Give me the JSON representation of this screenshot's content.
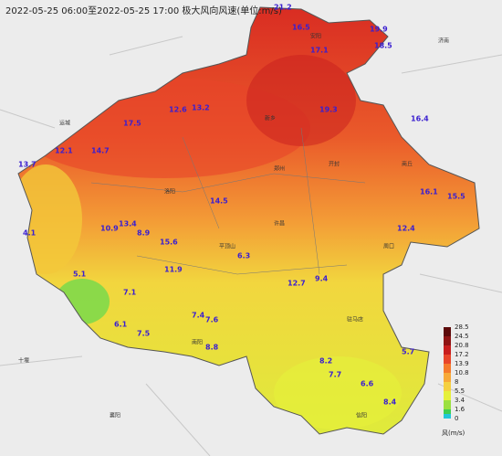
{
  "header": {
    "title": "2022-05-25 06:00至2022-05-25 17:00 极大风向风速(单位:m/s)"
  },
  "cities": [
    "郑州",
    "开封",
    "洛阳",
    "安阳",
    "新乡",
    "南阳",
    "信阳",
    "驻马店",
    "周口",
    "商丘",
    "许昌",
    "平顶山",
    "十堰",
    "襄阳",
    "运城",
    "济南"
  ],
  "stations": [
    "21.2",
    "19.9",
    "18.5",
    "16.5",
    "17.1",
    "19.3",
    "17.5",
    "12.6",
    "13.2",
    "12.1",
    "13.7",
    "14.7",
    "16.4",
    "16.1",
    "15.5",
    "14.5",
    "10.9",
    "13.4",
    "8.9",
    "15.6",
    "4.1",
    "5.1",
    "11.9",
    "7.1",
    "6.1",
    "7.5",
    "7.6",
    "8.8",
    "9.4",
    "12.7",
    "12.4",
    "6.3",
    "8.2",
    "5.7",
    "6.6",
    "7.4",
    "7.7",
    "8.4"
  ],
  "legend": {
    "unit": "风(m/s)",
    "levels": [
      {
        "label": "28.5",
        "color": "#5c0a0a"
      },
      {
        "label": "24.5",
        "color": "#8f1414"
      },
      {
        "label": "20.8",
        "color": "#c81e1e"
      },
      {
        "label": "17.2",
        "color": "#e8452a"
      },
      {
        "label": "13.9",
        "color": "#f57a2c"
      },
      {
        "label": "10.8",
        "color": "#f7a938"
      },
      {
        "label": "8",
        "color": "#f5d040"
      },
      {
        "label": "5.5",
        "color": "#e6f03a"
      },
      {
        "label": "3.4",
        "color": "#9be040"
      },
      {
        "label": "1.6",
        "color": "#3fcf50"
      },
      {
        "label": "0",
        "color": "#22c7d8"
      }
    ]
  }
}
